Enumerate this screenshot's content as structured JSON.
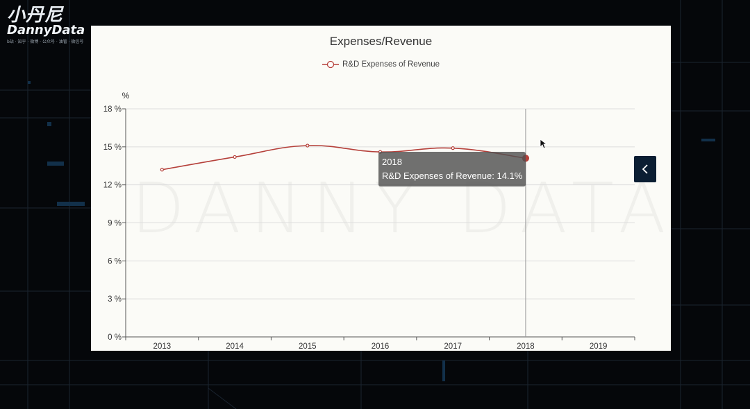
{
  "logo": {
    "cn_text": "小丹尼",
    "en_text": "DannyData",
    "sub_text": "b站 · 知乎 · 微博 · 公众号 · 油管 · 微信号"
  },
  "watermark": "DANNY DATA",
  "chart_data": {
    "type": "line",
    "title": "Expenses/Revenue",
    "ylabel": "%",
    "categories": [
      "2013",
      "2014",
      "2015",
      "2016",
      "2017",
      "2018",
      "2019"
    ],
    "series": [
      {
        "name": "R&D Expenses of Revenue",
        "color": "#b5403a",
        "values": [
          13.2,
          14.2,
          15.1,
          14.6,
          14.9,
          14.1,
          null
        ]
      }
    ],
    "ylim": [
      0,
      18
    ],
    "yticks": [
      "0 %",
      "3 %",
      "6 %",
      "9 %",
      "12 %",
      "15 %",
      "18 %"
    ],
    "ytick_values": [
      0,
      3,
      6,
      9,
      12,
      15,
      18
    ],
    "grid": true,
    "legend_position": "top-center",
    "smooth": true
  },
  "tooltip": {
    "title": "2018",
    "text": "R&D Expenses of Revenue: 14.1%"
  },
  "side_button": {
    "icon": "chevron-left-icon"
  }
}
